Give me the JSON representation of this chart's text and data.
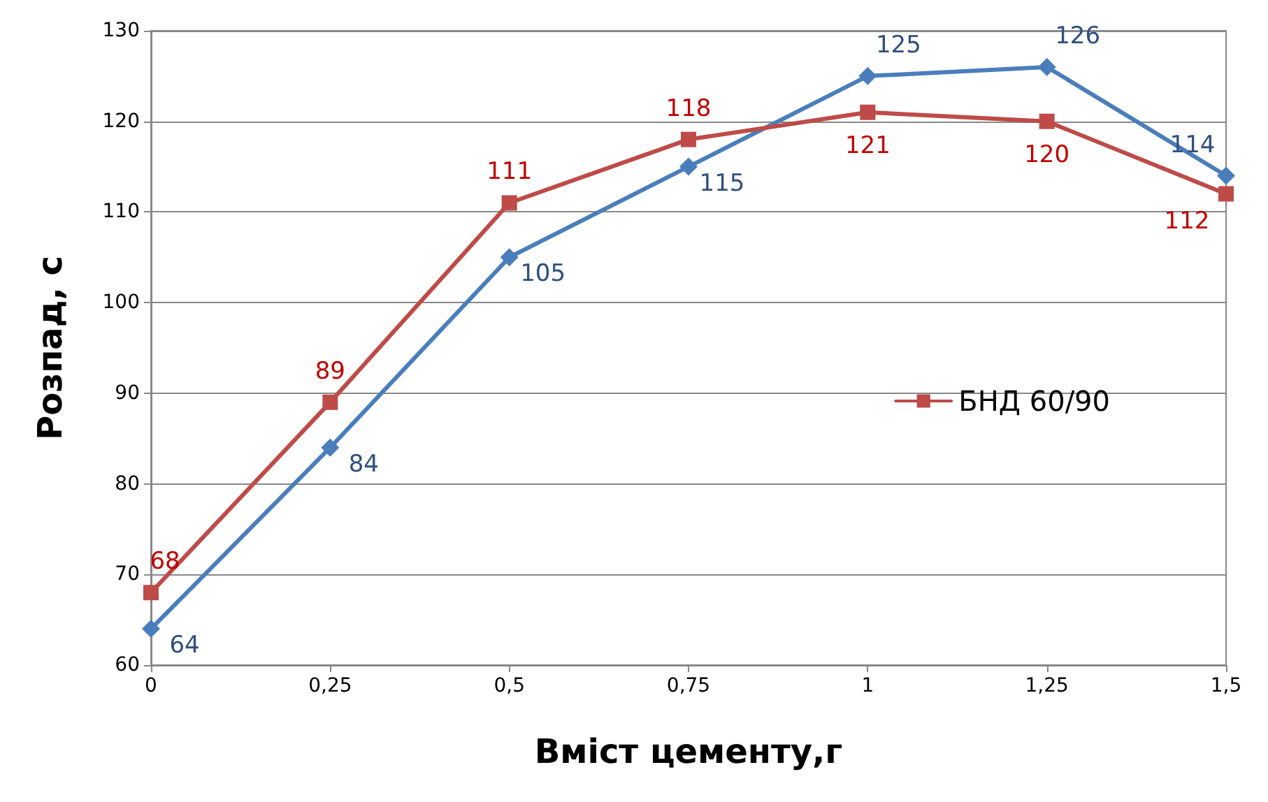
{
  "chart_data": {
    "type": "line",
    "xlabel": "Вміст цементу,г",
    "ylabel": "Розпад, с",
    "categories": [
      "0",
      "0,25",
      "0,5",
      "0,75",
      "1",
      "1,25",
      "1,5"
    ],
    "series": [
      {
        "color": "#4a7ebb",
        "marker": "diamond",
        "values": [
          64,
          84,
          105,
          115,
          125,
          126,
          114
        ]
      },
      {
        "name": "БНД 60/90",
        "color": "#be4b48",
        "marker": "square",
        "values": [
          68,
          89,
          111,
          118,
          121,
          120,
          112
        ]
      }
    ],
    "ylim": [
      60,
      130
    ],
    "yticks": [
      60,
      70,
      80,
      90,
      100,
      110,
      120,
      130
    ],
    "grid": "y",
    "legend": "right",
    "data_labels": true,
    "line_style": "solid"
  }
}
